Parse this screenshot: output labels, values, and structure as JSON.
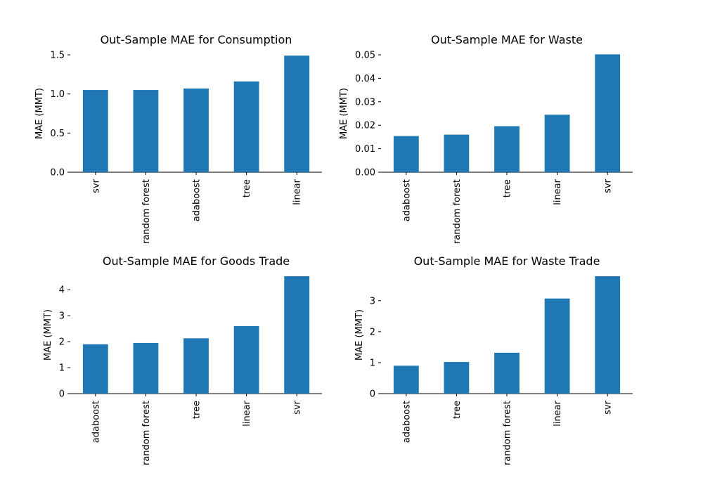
{
  "chart_data": [
    {
      "type": "bar",
      "title": "Out-Sample MAE for Consumption",
      "xlabel": "",
      "ylabel": "MAE (MMT)",
      "categories": [
        "svr",
        "random forest",
        "adaboost",
        "tree",
        "linear"
      ],
      "values": [
        1.05,
        1.05,
        1.07,
        1.16,
        1.49
      ],
      "ylim": [
        0,
        1.5
      ],
      "yticks": [
        0.0,
        0.5,
        1.0,
        1.5
      ],
      "ytick_labels": [
        "0.0",
        "0.5",
        "1.0",
        "1.5"
      ],
      "color": "#1f77b4",
      "grid": false,
      "legend": "none"
    },
    {
      "type": "bar",
      "title": "Out-Sample MAE for Waste",
      "xlabel": "",
      "ylabel": "MAE (MMT)",
      "categories": [
        "adaboost",
        "random forest",
        "tree",
        "linear",
        "svr"
      ],
      "values": [
        0.0154,
        0.016,
        0.0196,
        0.0245,
        0.0502
      ],
      "ylim": [
        0,
        0.05
      ],
      "yticks": [
        0.0,
        0.01,
        0.02,
        0.03,
        0.04,
        0.05
      ],
      "ytick_labels": [
        "0.00",
        "0.01",
        "0.02",
        "0.03",
        "0.04",
        "0.05"
      ],
      "color": "#1f77b4",
      "grid": false,
      "legend": "none"
    },
    {
      "type": "bar",
      "title": "Out-Sample MAE for Goods Trade",
      "xlabel": "",
      "ylabel": "MAE (MMT)",
      "categories": [
        "adaboost",
        "random forest",
        "tree",
        "linear",
        "svr"
      ],
      "values": [
        1.9,
        1.95,
        2.13,
        2.6,
        4.52
      ],
      "ylim": [
        0,
        4.52
      ],
      "yticks": [
        0,
        1,
        2,
        3,
        4
      ],
      "ytick_labels": [
        "0",
        "1",
        "2",
        "3",
        "4"
      ],
      "color": "#1f77b4",
      "grid": false,
      "legend": "none"
    },
    {
      "type": "bar",
      "title": "Out-Sample MAE for Waste Trade",
      "xlabel": "",
      "ylabel": "MAE (MMT)",
      "categories": [
        "adaboost",
        "tree",
        "random forest",
        "linear",
        "svr"
      ],
      "values": [
        0.9,
        1.02,
        1.32,
        3.07,
        3.79
      ],
      "ylim": [
        0,
        3.79
      ],
      "yticks": [
        0,
        1,
        2,
        3
      ],
      "ytick_labels": [
        "0",
        "1",
        "2",
        "3"
      ],
      "color": "#1f77b4",
      "grid": false,
      "legend": "none"
    }
  ]
}
